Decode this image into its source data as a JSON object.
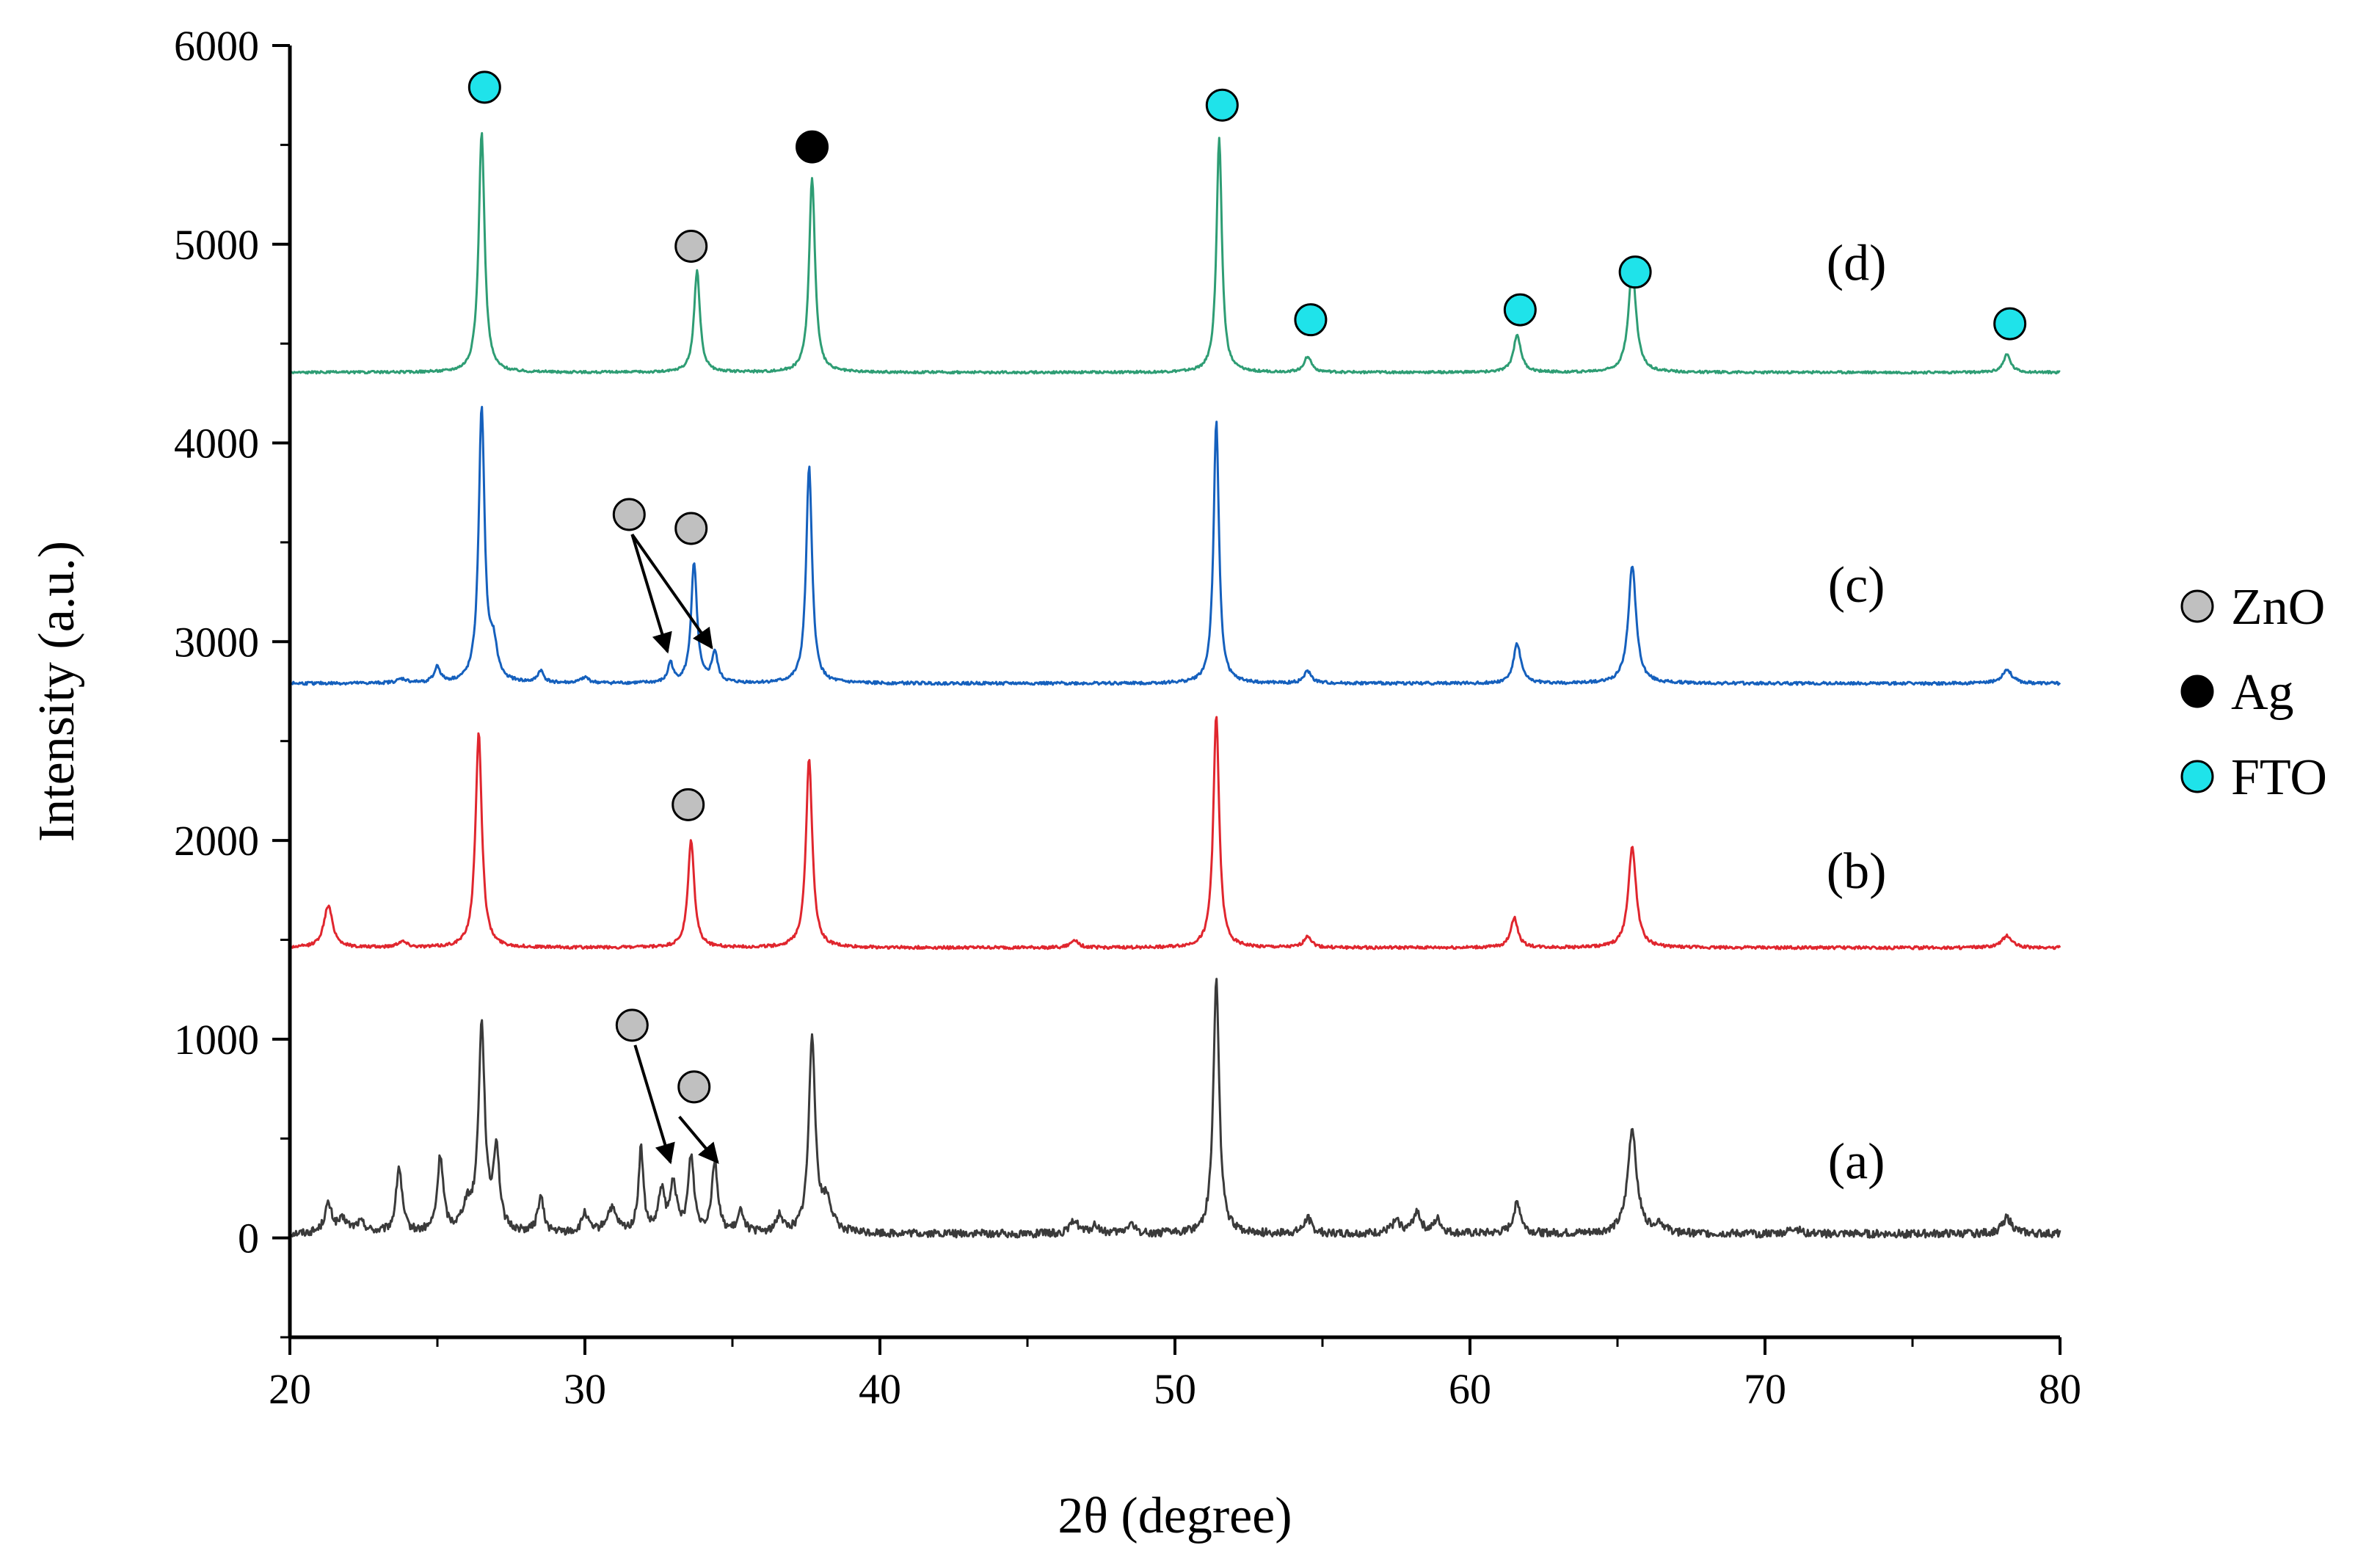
{
  "chart_data": {
    "type": "line",
    "title": "",
    "xlabel": "2θ (degree)",
    "ylabel": "Intensity (a.u.)",
    "xlim": [
      20,
      80
    ],
    "ylim": [
      -500,
      6000
    ],
    "xticks": [
      20,
      30,
      40,
      50,
      60,
      70,
      80
    ],
    "yticks": [
      0,
      1000,
      2000,
      3000,
      4000,
      5000,
      6000
    ],
    "grid": false,
    "series": [
      {
        "name": "(a)",
        "label": "(a)",
        "color": "#3a3a3a",
        "baseline": 20,
        "noise": 40,
        "label_x": 73.1,
        "label_y": 300,
        "peaks": [
          [
            21.3,
            140,
            0.15
          ],
          [
            21.8,
            60,
            0.2
          ],
          [
            22.4,
            50,
            0.2
          ],
          [
            23.7,
            330,
            0.12
          ],
          [
            25.1,
            380,
            0.12
          ],
          [
            26.0,
            120,
            0.2
          ],
          [
            26.5,
            1030,
            0.13
          ],
          [
            27.0,
            410,
            0.12
          ],
          [
            28.5,
            180,
            0.12
          ],
          [
            30.0,
            100,
            0.12
          ],
          [
            30.9,
            120,
            0.2
          ],
          [
            31.9,
            420,
            0.1
          ],
          [
            32.6,
            210,
            0.12
          ],
          [
            33.0,
            250,
            0.12
          ],
          [
            33.6,
            380,
            0.12
          ],
          [
            34.4,
            360,
            0.12
          ],
          [
            35.3,
            110,
            0.12
          ],
          [
            36.6,
            90,
            0.12
          ],
          [
            37.7,
            990,
            0.13
          ],
          [
            38.2,
            150,
            0.2
          ],
          [
            46.6,
            70,
            0.15
          ],
          [
            47.3,
            40,
            0.15
          ],
          [
            48.5,
            50,
            0.15
          ],
          [
            51.4,
            1280,
            0.12
          ],
          [
            54.5,
            80,
            0.15
          ],
          [
            57.5,
            60,
            0.2
          ],
          [
            58.2,
            110,
            0.15
          ],
          [
            58.9,
            70,
            0.15
          ],
          [
            61.6,
            160,
            0.15
          ],
          [
            65.5,
            530,
            0.18
          ],
          [
            66.4,
            50,
            0.2
          ],
          [
            71.0,
            30,
            0.2
          ],
          [
            78.2,
            80,
            0.2
          ]
        ]
      },
      {
        "name": "(b)",
        "label": "(b)",
        "color": "#e0262e",
        "baseline": 1460,
        "noise": 15,
        "label_x": 73.1,
        "label_y": 1760,
        "peaks": [
          [
            21.3,
            210,
            0.18
          ],
          [
            23.8,
            30,
            0.2
          ],
          [
            26.4,
            1080,
            0.13
          ],
          [
            33.6,
            540,
            0.13
          ],
          [
            37.6,
            950,
            0.13
          ],
          [
            46.6,
            40,
            0.15
          ],
          [
            51.4,
            1170,
            0.12
          ],
          [
            54.5,
            60,
            0.15
          ],
          [
            61.5,
            150,
            0.15
          ],
          [
            65.5,
            510,
            0.16
          ],
          [
            78.2,
            60,
            0.2
          ]
        ]
      },
      {
        "name": "(c)",
        "label": "(c)",
        "color": "#1560bd",
        "baseline": 2790,
        "noise": 15,
        "label_x": 73.1,
        "label_y": 3200,
        "peaks": [
          [
            23.8,
            20,
            0.2
          ],
          [
            25.0,
            80,
            0.12
          ],
          [
            26.5,
            1380,
            0.12
          ],
          [
            26.9,
            170,
            0.15
          ],
          [
            28.5,
            60,
            0.12
          ],
          [
            30.0,
            30,
            0.15
          ],
          [
            32.9,
            100,
            0.1
          ],
          [
            33.7,
            600,
            0.12
          ],
          [
            34.4,
            150,
            0.12
          ],
          [
            37.6,
            1090,
            0.12
          ],
          [
            51.4,
            1320,
            0.11
          ],
          [
            54.5,
            60,
            0.15
          ],
          [
            61.6,
            200,
            0.15
          ],
          [
            65.5,
            590,
            0.16
          ],
          [
            78.2,
            70,
            0.2
          ]
        ]
      },
      {
        "name": "(d)",
        "label": "(d)",
        "color": "#2e9d74",
        "baseline": 4355,
        "noise": 12,
        "label_x": 73.1,
        "label_y": 4820,
        "peaks": [
          [
            26.5,
            1210,
            0.12
          ],
          [
            33.8,
            510,
            0.12
          ],
          [
            37.7,
            980,
            0.12
          ],
          [
            51.5,
            1180,
            0.11
          ],
          [
            54.5,
            80,
            0.15
          ],
          [
            61.6,
            190,
            0.15
          ],
          [
            65.5,
            520,
            0.16
          ],
          [
            78.2,
            90,
            0.15
          ]
        ]
      }
    ],
    "markers": [
      {
        "phase": "FTO",
        "x": 26.6,
        "y": 5790
      },
      {
        "phase": "Ag",
        "x": 37.7,
        "y": 5490
      },
      {
        "phase": "FTO",
        "x": 51.6,
        "y": 5700
      },
      {
        "phase": "ZnO",
        "x": 33.6,
        "y": 4990
      },
      {
        "phase": "FTO",
        "x": 54.6,
        "y": 4620
      },
      {
        "phase": "FTO",
        "x": 61.7,
        "y": 4670
      },
      {
        "phase": "FTO",
        "x": 65.6,
        "y": 4860
      },
      {
        "phase": "FTO",
        "x": 78.3,
        "y": 4600
      },
      {
        "phase": "ZnO",
        "x": 31.5,
        "y": 3640
      },
      {
        "phase": "ZnO",
        "x": 33.6,
        "y": 3570
      },
      {
        "phase": "ZnO",
        "x": 33.5,
        "y": 2180
      },
      {
        "phase": "ZnO",
        "x": 31.6,
        "y": 1070
      },
      {
        "phase": "ZnO",
        "x": 33.7,
        "y": 760
      }
    ],
    "arrows": [
      {
        "from": [
          31.6,
          3540
        ],
        "to": [
          32.8,
          2950
        ]
      },
      {
        "from": [
          31.6,
          3540
        ],
        "to": [
          34.3,
          2970
        ]
      },
      {
        "from": [
          31.7,
          970
        ],
        "to": [
          32.9,
          380
        ]
      },
      {
        "from": [
          33.2,
          610
        ],
        "to": [
          34.5,
          380
        ]
      }
    ],
    "legend": {
      "position": "right",
      "entries": [
        {
          "label": "ZnO",
          "phase": "ZnO"
        },
        {
          "label": "Ag",
          "phase": "Ag"
        },
        {
          "label": "FTO",
          "phase": "FTO"
        }
      ]
    },
    "phase_colors": {
      "ZnO": "#c0c0c0",
      "Ag": "#000000",
      "FTO": "#1fe3ea"
    }
  }
}
